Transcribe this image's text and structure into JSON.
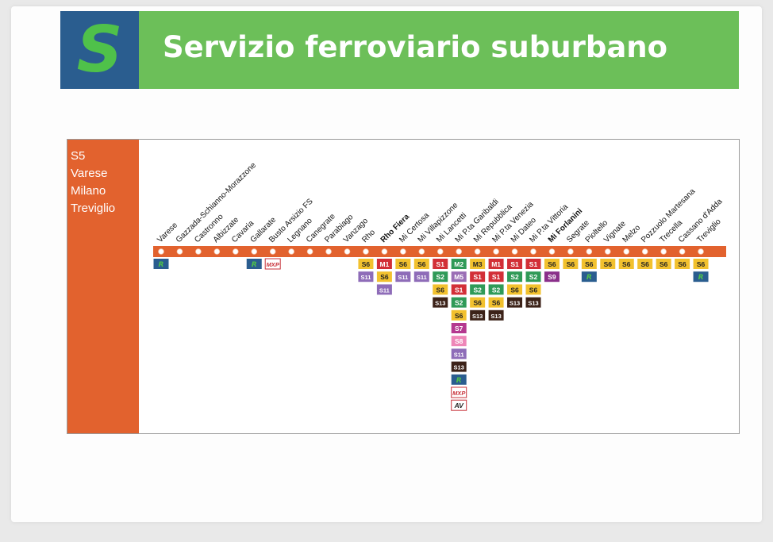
{
  "header": {
    "logo_letter": "S",
    "title": "Servizio ferroviario suburbano"
  },
  "colors": {
    "line_orange": "#e2622e",
    "header_green": "#6cbf59",
    "logo_blue": "#2a5d8f"
  },
  "line_info": {
    "code": "S5",
    "terminus_1": "Varese",
    "via": "Milano",
    "terminus_2": "Treviglio"
  },
  "badge_styles": {
    "S1": {
      "bg": "#d22f37",
      "fg": "#ffffff"
    },
    "S2": {
      "bg": "#2f9a57",
      "fg": "#ffffff"
    },
    "S5": {
      "bg": "#e2622e",
      "fg": "#ffffff"
    },
    "S6": {
      "bg": "#f2c12e",
      "fg": "#222222"
    },
    "S7": {
      "bg": "#b4388f",
      "fg": "#ffffff"
    },
    "S8": {
      "bg": "#ee86b8",
      "fg": "#ffffff"
    },
    "S9": {
      "bg": "#8a2f8a",
      "fg": "#ffffff"
    },
    "S11": {
      "bg": "#8e6cb8",
      "fg": "#ffffff"
    },
    "S13": {
      "bg": "#3c2218",
      "fg": "#ffffff"
    },
    "M1": {
      "bg": "#d22f37",
      "fg": "#ffffff"
    },
    "M2": {
      "bg": "#2f9a57",
      "fg": "#ffffff"
    },
    "M3": {
      "bg": "#f2c12e",
      "fg": "#222222"
    },
    "M5": {
      "bg": "#9a6db5",
      "fg": "#ffffff"
    },
    "R": {
      "bg": "#2a5d8f",
      "fg": "#4fc14a"
    },
    "MXP": {
      "bg": "#ffffff",
      "fg": "#c8323a",
      "border": "#c8323a"
    },
    "AV": {
      "bg": "#ffffff",
      "fg": "#222222",
      "border": "#c8323a"
    }
  },
  "stations": [
    {
      "name": "Varese",
      "bold": false,
      "connections": [
        "R"
      ]
    },
    {
      "name": "Gazzada-Schianno-Morazzone",
      "bold": false,
      "connections": []
    },
    {
      "name": "Castronno",
      "bold": false,
      "connections": []
    },
    {
      "name": "Albizzate",
      "bold": false,
      "connections": []
    },
    {
      "name": "Cavaria",
      "bold": false,
      "connections": []
    },
    {
      "name": "Gallarate",
      "bold": false,
      "connections": [
        "R"
      ]
    },
    {
      "name": "Busto Arsizio FS",
      "bold": false,
      "connections": [
        "MXP"
      ]
    },
    {
      "name": "Legnano",
      "bold": false,
      "connections": []
    },
    {
      "name": "Canegrate",
      "bold": false,
      "connections": []
    },
    {
      "name": "Parabiago",
      "bold": false,
      "connections": []
    },
    {
      "name": "Vanzago",
      "bold": false,
      "connections": []
    },
    {
      "name": "Rho",
      "bold": false,
      "connections": [
        "S6",
        "S11"
      ]
    },
    {
      "name": "Rho Fiera",
      "bold": true,
      "connections": [
        "M1",
        "S6",
        "S11"
      ]
    },
    {
      "name": "Mi Certosa",
      "bold": false,
      "connections": [
        "S6",
        "S11"
      ]
    },
    {
      "name": "Mi Villapizzone",
      "bold": false,
      "connections": [
        "S6",
        "S11"
      ]
    },
    {
      "name": "Mi Lancetti",
      "bold": false,
      "connections": [
        "S1",
        "S2",
        "S6",
        "S13"
      ]
    },
    {
      "name": "Mi P.ta Garibaldi",
      "bold": false,
      "connections": [
        "M2",
        "M5",
        "S1",
        "S2",
        "S6",
        "S7",
        "S8",
        "S11",
        "S13",
        "R",
        "MXP",
        "AV"
      ]
    },
    {
      "name": "Mi Repubblica",
      "bold": false,
      "connections": [
        "M3",
        "S1",
        "S2",
        "S6",
        "S13"
      ]
    },
    {
      "name": "Mi P.ta Venezia",
      "bold": false,
      "connections": [
        "M1",
        "S1",
        "S2",
        "S6",
        "S13"
      ]
    },
    {
      "name": "Mi Dateo",
      "bold": false,
      "connections": [
        "S1",
        "S2",
        "S6",
        "S13"
      ]
    },
    {
      "name": "Mi P.ta Vittoria",
      "bold": false,
      "connections": [
        "S1",
        "S2",
        "S6",
        "S13"
      ]
    },
    {
      "name": "Mi Forlanini",
      "bold": true,
      "connections": [
        "S6",
        "S9"
      ]
    },
    {
      "name": "Segrate",
      "bold": false,
      "connections": [
        "S6"
      ]
    },
    {
      "name": "Pioltello",
      "bold": false,
      "connections": [
        "S6",
        "R"
      ]
    },
    {
      "name": "Vignate",
      "bold": false,
      "connections": [
        "S6"
      ]
    },
    {
      "name": "Melzo",
      "bold": false,
      "connections": [
        "S6"
      ]
    },
    {
      "name": "Pozzuolo Martesana",
      "bold": false,
      "connections": [
        "S6"
      ]
    },
    {
      "name": "Trecella",
      "bold": false,
      "connections": [
        "S6"
      ]
    },
    {
      "name": "Cassano d'Adda",
      "bold": false,
      "connections": [
        "S6"
      ]
    },
    {
      "name": "Treviglio",
      "bold": false,
      "connections": [
        "S6",
        "R"
      ]
    }
  ]
}
